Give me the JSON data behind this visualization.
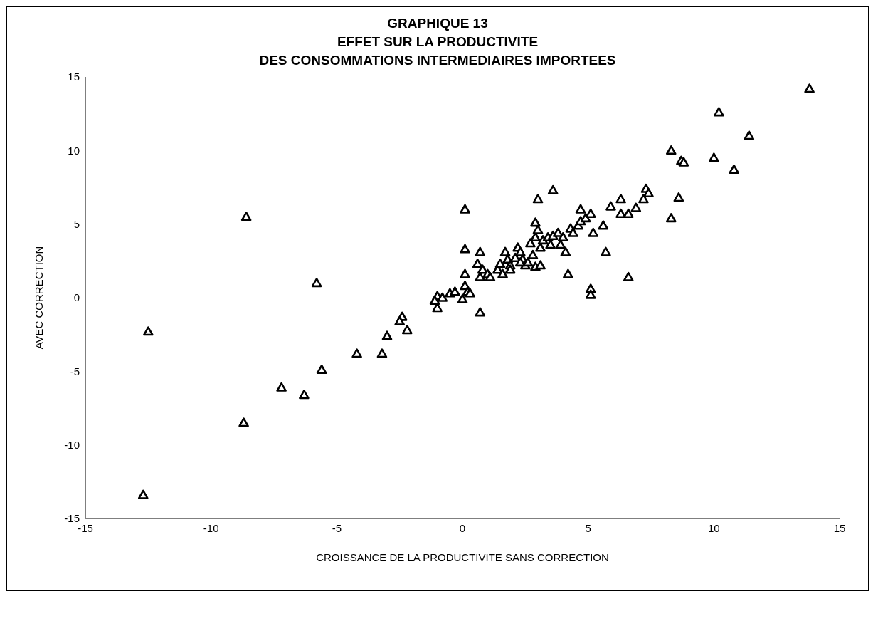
{
  "chart_data": {
    "type": "scatter",
    "title": "GRAPHIQUE 13\nEFFET SUR LA PRODUCTIVITE\nDES CONSOMMATIONS INTERMEDIAIRES IMPORTEES",
    "xlabel": "CROISSANCE DE LA PRODUCTIVITE SANS CORRECTION",
    "ylabel": "AVEC CORRECTION",
    "marker": "triangle",
    "grid": false,
    "xlim": [
      -15,
      15
    ],
    "xticks": [
      -15,
      -10,
      -5,
      0,
      5,
      10,
      15
    ],
    "ylim": [
      -15,
      15
    ],
    "yticks": [
      -15,
      -10,
      -5,
      0,
      5,
      10,
      15
    ],
    "series": [
      {
        "color": "#000000",
        "x": [
          13.8,
          10.2,
          11.4,
          8.3,
          8.7,
          8.8,
          10.0,
          10.8,
          7.3,
          7.4,
          7.2,
          8.6,
          8.3,
          3.6,
          3.0,
          0.1,
          -8.6,
          -5.8,
          -12.5,
          -12.7,
          -8.7,
          -7.2,
          -6.3,
          -5.6,
          -4.2,
          -3.2,
          -3.0,
          -2.4,
          -2.5,
          -2.2,
          0.7,
          -1.0,
          -1.0,
          -1.1,
          -0.8,
          -0.5,
          -0.3,
          0.0,
          0.1,
          0.2,
          0.3,
          0.1,
          0.1,
          0.7,
          0.6,
          0.8,
          0.7,
          1.0,
          1.1,
          1.4,
          1.5,
          1.7,
          1.8,
          1.9,
          2.1,
          2.2,
          2.3,
          2.4,
          2.5,
          2.6,
          2.8,
          2.9,
          2.9,
          3.0,
          3.1,
          3.2,
          3.4,
          3.6,
          3.8,
          3.9,
          4.0,
          4.1,
          4.3,
          4.4,
          4.6,
          4.7,
          4.7,
          4.9,
          5.1,
          5.2,
          5.6,
          5.9,
          6.3,
          6.3,
          6.6,
          6.9,
          5.7,
          4.2,
          5.1,
          5.1,
          6.6,
          2.9,
          3.1,
          1.6,
          1.9,
          2.3,
          2.7,
          3.5
        ],
        "values": [
          14.2,
          12.6,
          11.0,
          10.0,
          9.3,
          9.2,
          9.5,
          8.7,
          7.4,
          7.1,
          6.7,
          6.8,
          5.4,
          7.3,
          6.7,
          6.0,
          5.5,
          1.0,
          -2.3,
          -13.4,
          -8.5,
          -6.1,
          -6.6,
          -4.9,
          -3.8,
          -3.8,
          -2.6,
          -1.3,
          -1.6,
          -2.2,
          -1.0,
          0.1,
          -0.7,
          -0.2,
          0.0,
          0.3,
          0.4,
          -0.1,
          0.8,
          0.4,
          0.3,
          1.6,
          3.3,
          3.1,
          2.3,
          1.9,
          1.4,
          1.6,
          1.4,
          1.9,
          2.3,
          3.1,
          2.6,
          2.2,
          2.7,
          3.4,
          3.1,
          2.6,
          2.2,
          2.4,
          2.9,
          4.1,
          5.1,
          4.6,
          3.4,
          3.9,
          4.1,
          4.2,
          4.4,
          3.6,
          4.1,
          3.1,
          4.7,
          4.4,
          4.9,
          6.0,
          5.2,
          5.4,
          5.7,
          4.4,
          4.9,
          6.2,
          6.7,
          5.7,
          5.7,
          6.1,
          3.1,
          1.6,
          0.6,
          0.2,
          1.4,
          2.1,
          2.2,
          1.6,
          1.9,
          2.4,
          3.7,
          3.6
        ]
      }
    ]
  }
}
